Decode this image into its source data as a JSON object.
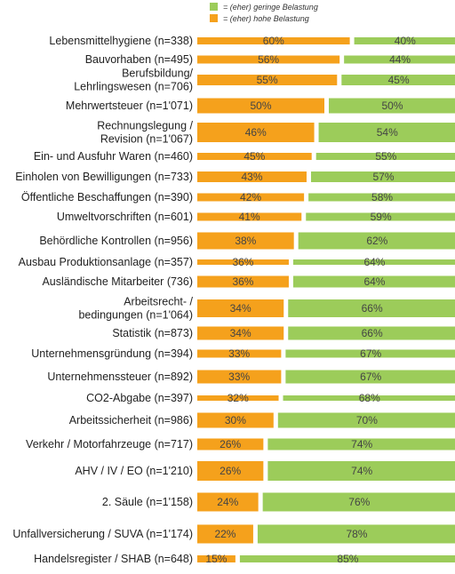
{
  "legend": {
    "green_label": "= (eher) geringe Belastung",
    "orange_label": "= (eher) hohe Belastung"
  },
  "colors": {
    "green": "#9ccc5a",
    "orange": "#f5a11c"
  },
  "chart_data": {
    "type": "bar",
    "stacked": true,
    "orientation": "horizontal",
    "categories": [
      [
        "Lebensmittelhygiene (n=338)"
      ],
      [
        "Bauvorhaben (n=495)"
      ],
      [
        "Berufsbildung/",
        "Lehrlingswesen (n=706)"
      ],
      [
        "Mehrwertsteuer (n=1'071)"
      ],
      [
        "Rechnungslegung /",
        "Revision (n=1'067)"
      ],
      [
        "Ein- und Ausfuhr Waren (n=460)"
      ],
      [
        "Einholen von Bewilligungen (n=733)"
      ],
      [
        "Öffentliche Beschaffungen (n=390)"
      ],
      [
        "Umweltvorschriften (n=601)"
      ],
      [
        "Behördliche Kontrollen (n=956)"
      ],
      [
        "Ausbau Produktionsanlage (n=357)"
      ],
      [
        "Ausländische Mitarbeiter (736)"
      ],
      [
        "Arbeitsrecht- /",
        "bedingungen (n=1'064)"
      ],
      [
        "Statistik (n=873)"
      ],
      [
        "Unternehmensgründung (n=394)"
      ],
      [
        "Unternehmenssteuer (n=892)"
      ],
      [
        "CO2-Abgabe (n=397)"
      ],
      [
        "Arbeitssicherheit (n=986)"
      ],
      [
        "Verkehr / Motorfahrzeuge (n=717)"
      ],
      [
        "AHV / IV / EO (n=1'210)"
      ],
      [
        "2. Säule (n=1'158)"
      ],
      [
        "Unfallversicherung / SUVA (n=1'174)"
      ],
      [
        "Handelsregister / SHAB (n=648)"
      ]
    ],
    "series": [
      {
        "name": "= (eher) hohe Belastung",
        "values": [
          60,
          56,
          55,
          50,
          46,
          45,
          43,
          42,
          41,
          38,
          36,
          36,
          34,
          34,
          33,
          33,
          32,
          30,
          26,
          26,
          24,
          22,
          15
        ]
      },
      {
        "name": "= (eher) geringe Belastung",
        "values": [
          40,
          44,
          45,
          50,
          54,
          55,
          57,
          58,
          59,
          62,
          64,
          64,
          66,
          66,
          67,
          67,
          68,
          70,
          74,
          74,
          76,
          78,
          85
        ]
      }
    ],
    "value_labels": {
      "orange": [
        "60%",
        "56%",
        "55%",
        "50%",
        "46%",
        "45%",
        "43%",
        "42%",
        "41%",
        "38%",
        "36%",
        "36%",
        "34%",
        "34%",
        "33%",
        "33%",
        "32%",
        "30%",
        "26%",
        "26%",
        "24%",
        "22%",
        "15%"
      ],
      "green": [
        "40%",
        "44%",
        "45%",
        "50%",
        "54%",
        "55%",
        "57%",
        "58%",
        "59%",
        "62%",
        "64%",
        "64%",
        "66%",
        "66%",
        "67%",
        "67%",
        "68%",
        "70%",
        "74%",
        "74%",
        "76%",
        "78%",
        "85%"
      ]
    },
    "xlim": [
      0,
      100
    ],
    "legend_position": "top"
  }
}
